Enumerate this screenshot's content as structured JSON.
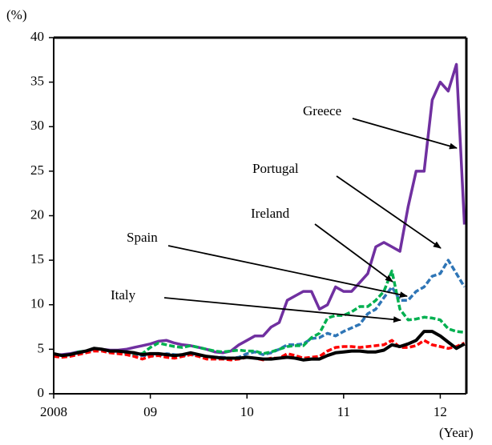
{
  "chart_data": {
    "type": "line",
    "y_label": "(%)",
    "x_label": "(Year)",
    "x": [
      2008,
      2008.083,
      2008.167,
      2008.25,
      2008.333,
      2008.417,
      2008.5,
      2008.583,
      2008.667,
      2008.75,
      2008.833,
      2008.917,
      2009,
      2009.083,
      2009.167,
      2009.25,
      2009.333,
      2009.417,
      2009.5,
      2009.583,
      2009.667,
      2009.75,
      2009.833,
      2009.917,
      2010,
      2010.083,
      2010.167,
      2010.25,
      2010.333,
      2010.417,
      2010.5,
      2010.583,
      2010.667,
      2010.75,
      2010.833,
      2010.917,
      2011,
      2011.083,
      2011.167,
      2011.25,
      2011.333,
      2011.417,
      2011.5,
      2011.583,
      2011.667,
      2011.75,
      2011.833,
      2011.917,
      2012,
      2012.083,
      2012.167,
      2012.25
    ],
    "series": [
      {
        "name": "Greece",
        "color": "#7030a0",
        "values": [
          4.4,
          4.4,
          4.5,
          4.7,
          4.8,
          5.0,
          5.0,
          4.9,
          4.9,
          5.0,
          5.2,
          5.4,
          5.6,
          5.9,
          6.0,
          5.7,
          5.5,
          5.4,
          5.2,
          5.0,
          4.7,
          4.6,
          4.8,
          5.5,
          6.0,
          6.5,
          6.5,
          7.5,
          8.0,
          10.5,
          11.0,
          11.5,
          11.5,
          9.5,
          10.0,
          12.0,
          11.5,
          11.5,
          12.5,
          13.5,
          16.5,
          17.0,
          16.5,
          16.0,
          21.0,
          25.0,
          25.0,
          33.0,
          35.0,
          34.0,
          37.0,
          19.0
        ]
      },
      {
        "name": "Portugal",
        "color": "#2e75b6",
        "values": [
          4.4,
          4.3,
          4.4,
          4.6,
          4.7,
          5.0,
          5.0,
          4.7,
          4.6,
          4.5,
          4.3,
          4.3,
          4.3,
          4.3,
          4.5,
          4.4,
          4.3,
          4.4,
          4.3,
          4.2,
          4.1,
          4.1,
          4.0,
          4.1,
          4.5,
          4.7,
          4.4,
          4.6,
          5.0,
          5.5,
          5.5,
          5.6,
          6.2,
          6.3,
          6.8,
          6.5,
          7.0,
          7.4,
          7.8,
          9.0,
          9.5,
          10.8,
          12.0,
          10.5,
          10.5,
          11.5,
          12.0,
          13.2,
          13.5,
          15.0,
          13.5,
          12.0
        ]
      },
      {
        "name": "Ireland",
        "color": "#00b050",
        "values": [
          4.3,
          4.3,
          4.4,
          4.7,
          4.8,
          5.0,
          5.0,
          4.8,
          4.8,
          4.6,
          4.5,
          4.5,
          5.2,
          5.7,
          5.5,
          5.3,
          5.2,
          5.4,
          5.2,
          5.0,
          4.8,
          4.7,
          4.8,
          4.9,
          4.8,
          4.8,
          4.5,
          4.7,
          5.0,
          5.3,
          5.4,
          5.4,
          6.3,
          6.8,
          8.5,
          8.8,
          8.8,
          9.2,
          9.8,
          9.8,
          10.5,
          11.5,
          13.8,
          9.5,
          8.3,
          8.4,
          8.6,
          8.5,
          8.3,
          7.3,
          7.0,
          6.9
        ]
      },
      {
        "name": "Spain",
        "color": "#ff0000",
        "values": [
          4.2,
          4.1,
          4.2,
          4.4,
          4.6,
          4.8,
          4.8,
          4.6,
          4.5,
          4.4,
          4.2,
          3.9,
          4.2,
          4.3,
          4.1,
          4.0,
          4.2,
          4.4,
          4.2,
          3.9,
          3.9,
          3.9,
          3.8,
          3.9,
          4.1,
          4.0,
          3.8,
          4.0,
          4.0,
          4.5,
          4.3,
          4.0,
          4.1,
          4.2,
          4.8,
          5.2,
          5.3,
          5.3,
          5.2,
          5.3,
          5.4,
          5.5,
          6.0,
          5.2,
          5.2,
          5.4,
          6.0,
          5.5,
          5.3,
          5.1,
          5.3,
          5.7
        ]
      },
      {
        "name": "Italy",
        "color": "#000000",
        "values": [
          4.5,
          4.3,
          4.4,
          4.6,
          4.8,
          5.1,
          5.0,
          4.8,
          4.8,
          4.7,
          4.6,
          4.4,
          4.5,
          4.5,
          4.4,
          4.3,
          4.4,
          4.6,
          4.4,
          4.2,
          4.1,
          4.0,
          4.0,
          4.0,
          4.1,
          4.0,
          3.9,
          3.9,
          4.0,
          4.1,
          4.0,
          3.8,
          3.9,
          3.9,
          4.3,
          4.6,
          4.7,
          4.8,
          4.8,
          4.7,
          4.7,
          4.9,
          5.5,
          5.3,
          5.6,
          6.0,
          7.0,
          7.0,
          6.5,
          5.8,
          5.1,
          5.6
        ]
      }
    ],
    "xlim": [
      2008,
      2012.27
    ],
    "xticks": [
      2008,
      {
        "value": 2009,
        "label": "09"
      },
      {
        "value": 2010,
        "label": "10"
      },
      {
        "value": 2011,
        "label": "11"
      },
      {
        "value": 2012,
        "label": "12"
      }
    ],
    "ylim": [
      0,
      40
    ],
    "yticks": [
      0,
      5,
      10,
      15,
      20,
      25,
      30,
      35,
      40
    ]
  }
}
